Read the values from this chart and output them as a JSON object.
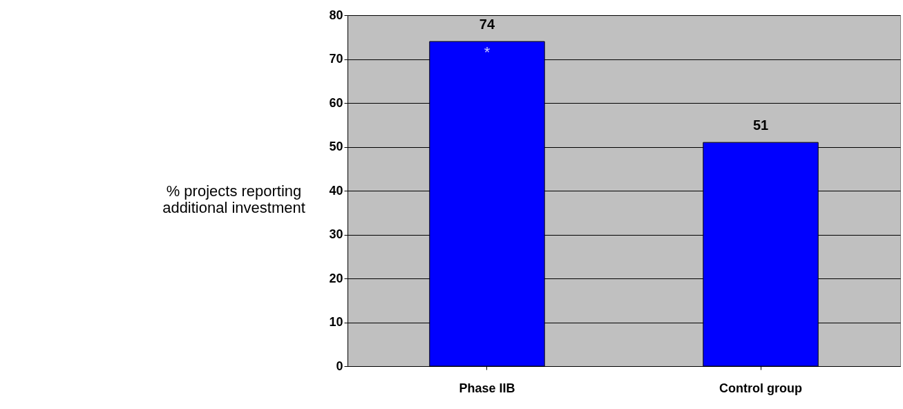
{
  "chart_data": {
    "type": "bar",
    "ylabel": "% projects reporting\nadditional investment",
    "categories": [
      "Phase IIB",
      "Control group"
    ],
    "values": [
      74,
      51
    ],
    "color": "#0000ff",
    "data_labels": true,
    "annotations": [
      "*"
    ],
    "ylim": [
      0,
      80
    ],
    "yticks": [
      0,
      10,
      20,
      30,
      40,
      50,
      60,
      70,
      80
    ],
    "grid": "y"
  }
}
